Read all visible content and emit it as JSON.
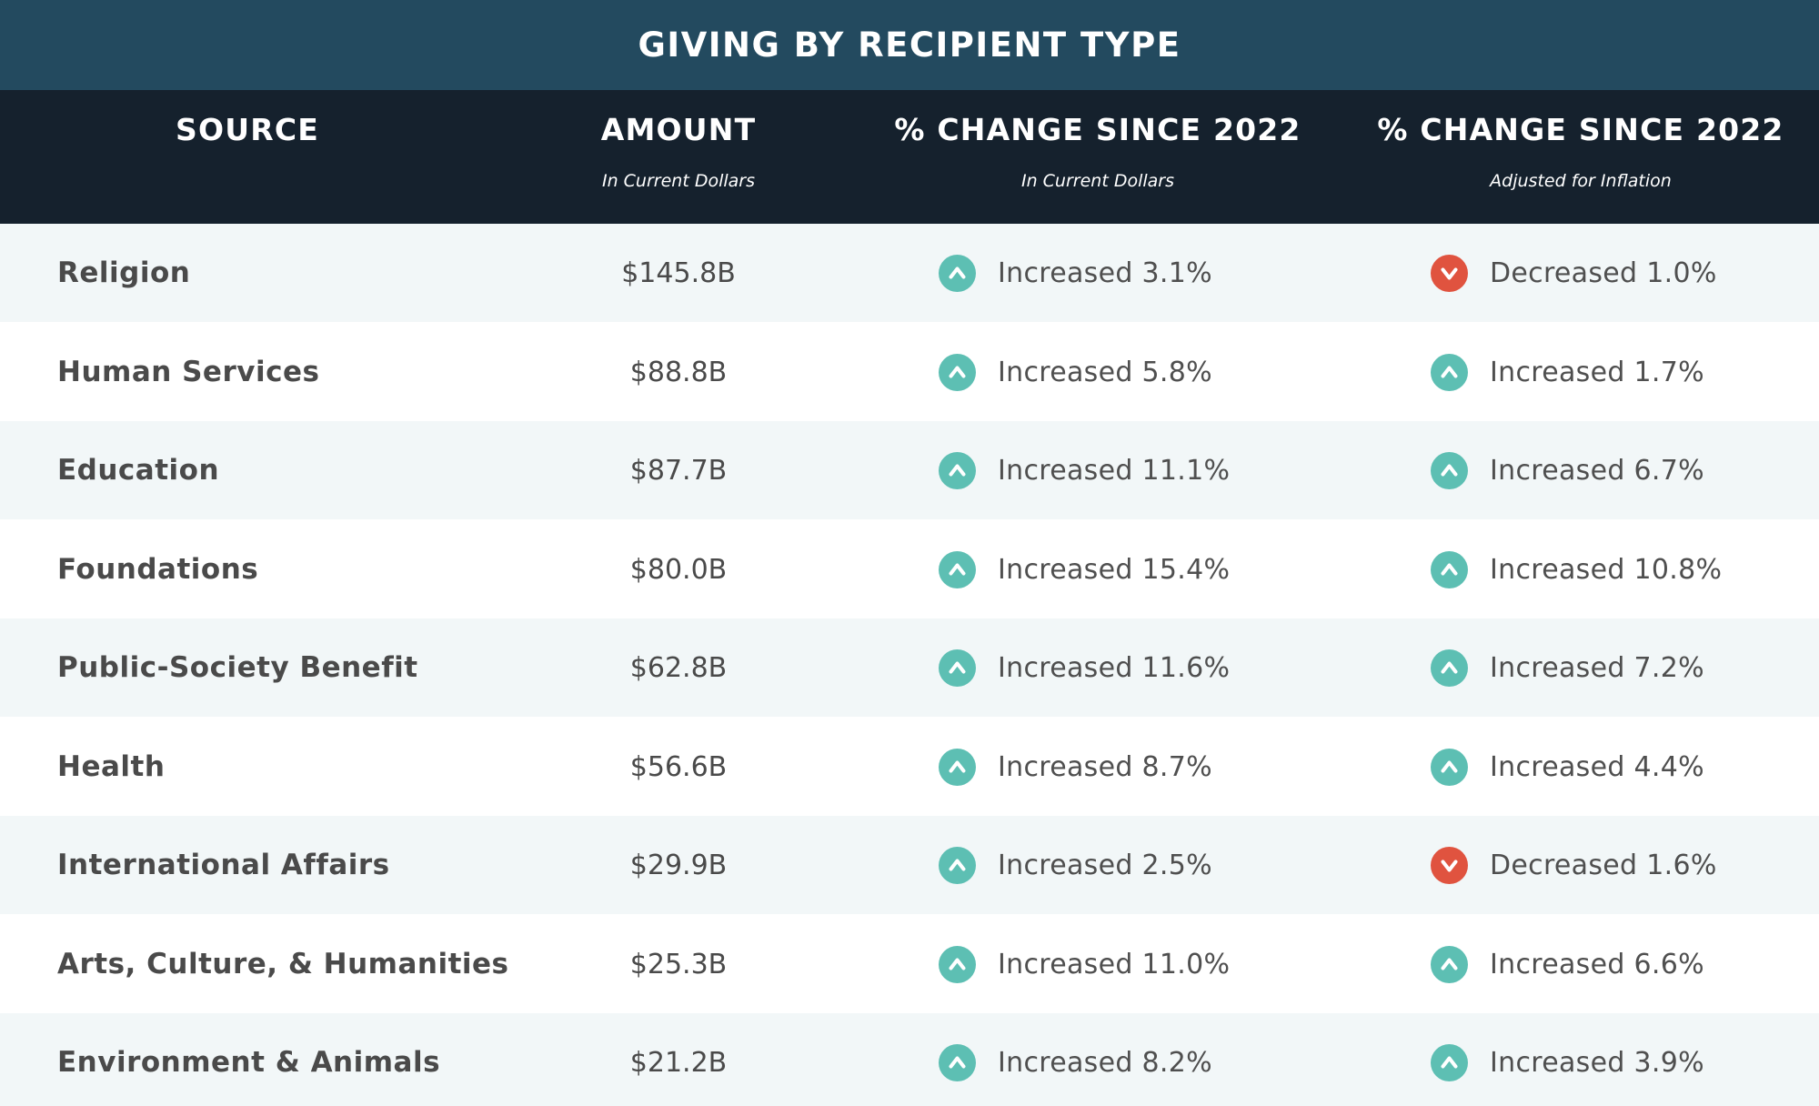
{
  "colors": {
    "title_bg": "#234a5f",
    "header_bg": "#15212d",
    "row_alt_bg": "#f2f7f8",
    "increase": "#5dbfb3",
    "decrease": "#e0533f",
    "text": "#4a4a4a"
  },
  "chart_data": {
    "type": "table",
    "title": "GIVING BY RECIPIENT TYPE",
    "columns": [
      {
        "label": "SOURCE",
        "sublabel": ""
      },
      {
        "label": "AMOUNT",
        "sublabel": "In Current Dollars"
      },
      {
        "label": "% CHANGE SINCE 2022",
        "sublabel": "In Current Dollars"
      },
      {
        "label": "% CHANGE SINCE 2022",
        "sublabel": "Adjusted for Inflation"
      }
    ],
    "rows": [
      {
        "source": "Religion",
        "amount": "$145.8B",
        "change_current": {
          "direction": "up",
          "icon": "up-arrow-icon",
          "text": "Increased 3.1%"
        },
        "change_inflation": {
          "direction": "down",
          "icon": "down-arrow-icon",
          "text": "Decreased 1.0%"
        }
      },
      {
        "source": "Human Services",
        "amount": "$88.8B",
        "change_current": {
          "direction": "up",
          "icon": "up-arrow-icon",
          "text": "Increased 5.8%"
        },
        "change_inflation": {
          "direction": "up",
          "icon": "up-arrow-icon",
          "text": "Increased 1.7%"
        }
      },
      {
        "source": "Education",
        "amount": "$87.7B",
        "change_current": {
          "direction": "up",
          "icon": "up-arrow-icon",
          "text": "Increased 11.1%"
        },
        "change_inflation": {
          "direction": "up",
          "icon": "up-arrow-icon",
          "text": "Increased 6.7%"
        }
      },
      {
        "source": "Foundations",
        "amount": "$80.0B",
        "change_current": {
          "direction": "up",
          "icon": "up-arrow-icon",
          "text": "Increased 15.4%"
        },
        "change_inflation": {
          "direction": "up",
          "icon": "up-arrow-icon",
          "text": "Increased 10.8%"
        }
      },
      {
        "source": "Public-Society Benefit",
        "amount": "$62.8B",
        "change_current": {
          "direction": "up",
          "icon": "up-arrow-icon",
          "text": "Increased 11.6%"
        },
        "change_inflation": {
          "direction": "up",
          "icon": "up-arrow-icon",
          "text": "Increased 7.2%"
        }
      },
      {
        "source": "Health",
        "amount": "$56.6B",
        "change_current": {
          "direction": "up",
          "icon": "up-arrow-icon",
          "text": "Increased 8.7%"
        },
        "change_inflation": {
          "direction": "up",
          "icon": "up-arrow-icon",
          "text": "Increased 4.4%"
        }
      },
      {
        "source": "International Affairs",
        "amount": "$29.9B",
        "change_current": {
          "direction": "up",
          "icon": "up-arrow-icon",
          "text": "Increased 2.5%"
        },
        "change_inflation": {
          "direction": "down",
          "icon": "down-arrow-icon",
          "text": "Decreased 1.6%"
        }
      },
      {
        "source": "Arts, Culture, & Humanities",
        "amount": "$25.3B",
        "change_current": {
          "direction": "up",
          "icon": "up-arrow-icon",
          "text": "Increased 11.0%"
        },
        "change_inflation": {
          "direction": "up",
          "icon": "up-arrow-icon",
          "text": "Increased 6.6%"
        }
      },
      {
        "source": "Environment & Animals",
        "amount": "$21.2B",
        "change_current": {
          "direction": "up",
          "icon": "up-arrow-icon",
          "text": "Increased 8.2%"
        },
        "change_inflation": {
          "direction": "up",
          "icon": "up-arrow-icon",
          "text": "Increased 3.9%"
        }
      }
    ]
  }
}
